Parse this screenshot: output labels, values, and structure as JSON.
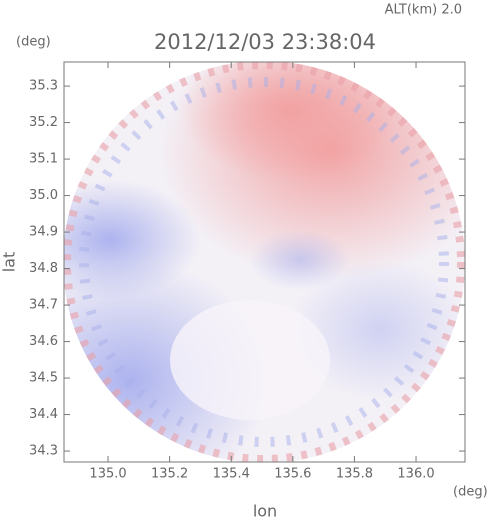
{
  "chart_data": {
    "type": "radar-ppi",
    "title": "2012/12/03 23:38:04",
    "annotation": "ALT(km) 2.0",
    "x_label": "lon",
    "y_label": "lat",
    "x_unit": "(deg)",
    "y_unit": "(deg)",
    "xlim": [
      134.857,
      136.159
    ],
    "ylim": [
      34.27,
      35.366
    ],
    "xticks": [
      {
        "value": 135.0,
        "label": "135.0"
      },
      135.2,
      135.4,
      135.6,
      135.8,
      {
        "value": 136.0,
        "label": "136.0"
      }
    ],
    "yticks": [
      34.3,
      34.4,
      34.5,
      34.6,
      34.7,
      34.8,
      34.9,
      {
        "value": 35.0,
        "label": "35.0"
      },
      35.1,
      35.2,
      35.3
    ]
  }
}
